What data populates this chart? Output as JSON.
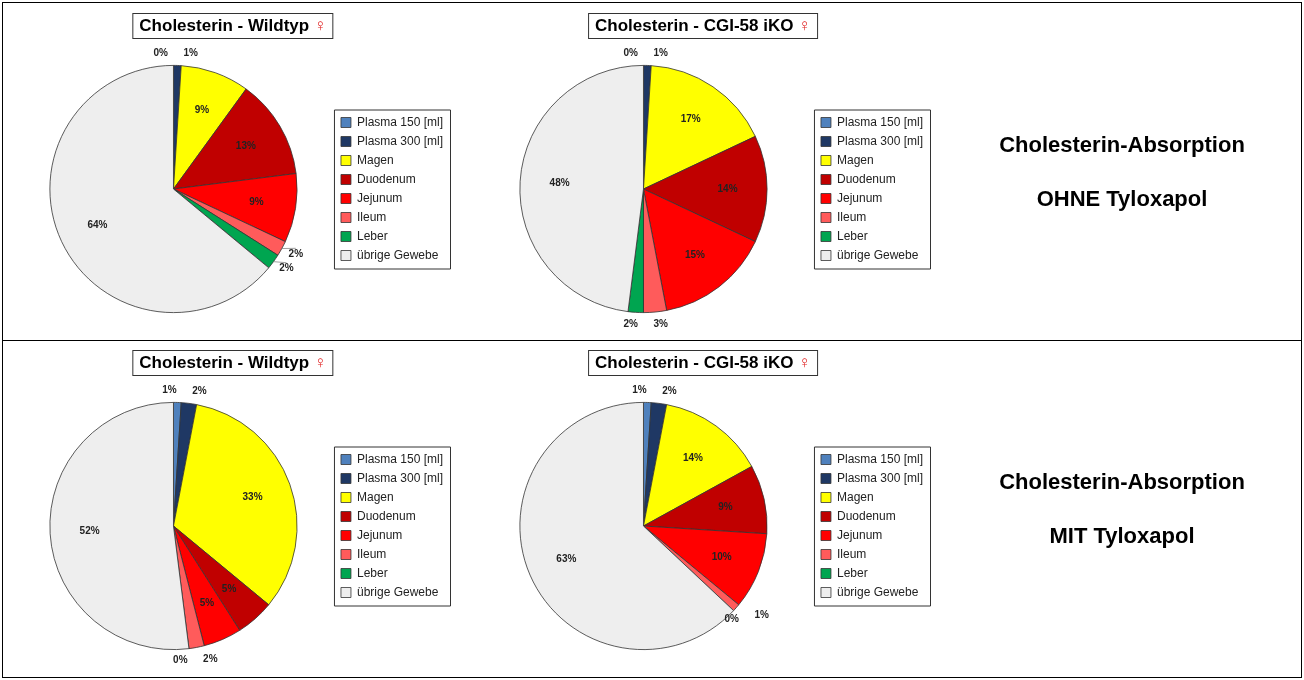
{
  "chart_data": [
    {
      "type": "pie",
      "title": "Cholesterin - Wildtyp ♀",
      "categories": [
        "Plasma 150 [ml]",
        "Plasma 300 [ml]",
        "Magen",
        "Duodenum",
        "Jejunum",
        "Ileum",
        "Leber",
        "übrige Gewebe"
      ],
      "values": [
        0,
        1,
        9,
        13,
        9,
        2,
        2,
        64
      ],
      "value_labels": [
        "0%",
        "1%",
        "9%",
        "13%",
        "9%",
        "2%",
        "2%",
        "64%"
      ],
      "colors": [
        "#4f81bd",
        "#1f3864",
        "#ffff00",
        "#c00000",
        "#ff0000",
        "#ff5b5b",
        "#00a550",
        "#eeeeee"
      ],
      "legend": "right"
    },
    {
      "type": "pie",
      "title": "Cholesterin - CGI-58 iKO ♀",
      "categories": [
        "Plasma 150 [ml]",
        "Plasma 300 [ml]",
        "Magen",
        "Duodenum",
        "Jejunum",
        "Ileum",
        "Leber",
        "übrige Gewebe"
      ],
      "values": [
        0,
        1,
        17,
        14,
        15,
        3,
        2,
        48
      ],
      "value_labels": [
        "0%",
        "1%",
        "17%",
        "14%",
        "15%",
        "3%",
        "2%",
        "48%"
      ],
      "colors": [
        "#4f81bd",
        "#1f3864",
        "#ffff00",
        "#c00000",
        "#ff0000",
        "#ff5b5b",
        "#00a550",
        "#eeeeee"
      ],
      "legend": "right"
    },
    {
      "type": "other",
      "annotations": [
        "Cholesterin-Absorption",
        "OHNE Tyloxapol"
      ]
    },
    {
      "type": "pie",
      "title": "Cholesterin - Wildtyp ♀",
      "categories": [
        "Plasma 150 [ml]",
        "Plasma 300 [ml]",
        "Magen",
        "Duodenum",
        "Jejunum",
        "Ileum",
        "Leber",
        "übrige Gewebe"
      ],
      "values": [
        1,
        2,
        33,
        5,
        5,
        2,
        0,
        52
      ],
      "value_labels": [
        "1%",
        "2%",
        "33%",
        "5%",
        "5%",
        "2%",
        "0%",
        "52%"
      ],
      "colors": [
        "#4f81bd",
        "#1f3864",
        "#ffff00",
        "#c00000",
        "#ff0000",
        "#ff5b5b",
        "#00a550",
        "#eeeeee"
      ],
      "legend": "right"
    },
    {
      "type": "pie",
      "title": "Cholesterin - CGI-58 iKO ♀",
      "categories": [
        "Plasma 150 [ml]",
        "Plasma 300 [ml]",
        "Magen",
        "Duodenum",
        "Jejunum",
        "Ileum",
        "Leber",
        "übrige Gewebe"
      ],
      "values": [
        1,
        2,
        14,
        9,
        10,
        1,
        0,
        63
      ],
      "value_labels": [
        "1%",
        "2%",
        "14%",
        "9%",
        "10%",
        "1%",
        "0%",
        "63%"
      ],
      "colors": [
        "#4f81bd",
        "#1f3864",
        "#ffff00",
        "#c00000",
        "#ff0000",
        "#ff5b5b",
        "#00a550",
        "#eeeeee"
      ],
      "legend": "right"
    },
    {
      "type": "other",
      "annotations": [
        "Cholesterin-Absorption",
        "MIT Tyloxapol"
      ]
    }
  ]
}
